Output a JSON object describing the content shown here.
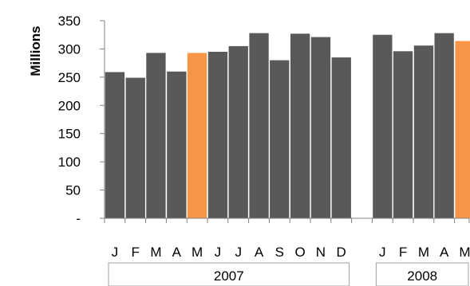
{
  "chart_data": {
    "type": "bar",
    "title": "",
    "ylabel": "Millions",
    "xlabel": "",
    "ylim": [
      0,
      350
    ],
    "y_ticks": [
      {
        "value": 0,
        "label": "-"
      },
      {
        "value": 50,
        "label": "50"
      },
      {
        "value": 100,
        "label": "100"
      },
      {
        "value": 150,
        "label": "150"
      },
      {
        "value": 200,
        "label": "200"
      },
      {
        "value": 250,
        "label": "250"
      },
      {
        "value": 300,
        "label": "300"
      },
      {
        "value": 350,
        "label": "350"
      }
    ],
    "grid": false,
    "legend": "none",
    "colors": {
      "default": "#595959",
      "highlight": "#F79646"
    },
    "groups": [
      {
        "label": "2007",
        "categories": [
          "J",
          "F",
          "M",
          "A",
          "M",
          "J",
          "J",
          "A",
          "S",
          "O",
          "N",
          "D"
        ],
        "values": [
          259,
          249,
          293,
          260,
          293,
          295,
          305,
          328,
          280,
          327,
          321,
          285
        ],
        "highlight": [
          false,
          false,
          false,
          false,
          true,
          false,
          false,
          false,
          false,
          false,
          false,
          false
        ]
      },
      {
        "label": "2008",
        "categories": [
          "J",
          "F",
          "M",
          "A",
          "M"
        ],
        "values": [
          325,
          296,
          306,
          328,
          314
        ],
        "highlight": [
          false,
          false,
          false,
          false,
          true
        ]
      }
    ]
  }
}
